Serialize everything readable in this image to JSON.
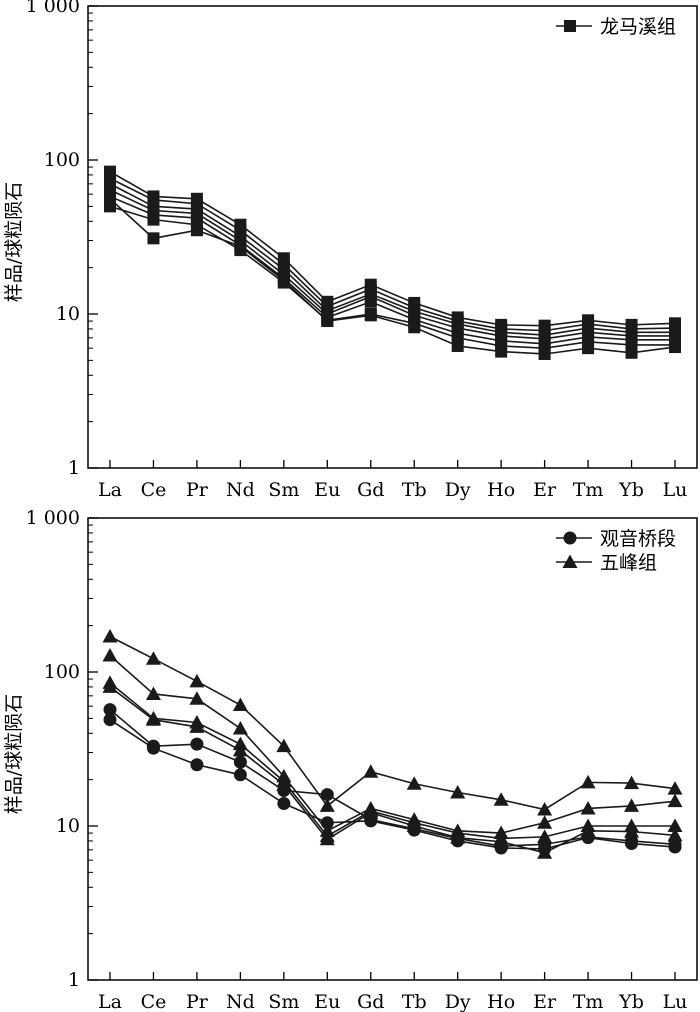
{
  "chart_data": [
    {
      "type": "line",
      "yscale": "log",
      "ylim": [
        1,
        1000
      ],
      "yticks": [
        1,
        10,
        100,
        1000
      ],
      "ytick_labels": [
        "1",
        "10",
        "100",
        "1 000"
      ],
      "ylabel": "样品/球粒陨石",
      "categories": [
        "La",
        "Ce",
        "Pr",
        "Nd",
        "Sm",
        "Eu",
        "Gd",
        "Tb",
        "Dy",
        "Ho",
        "Er",
        "Tm",
        "Yb",
        "Lu"
      ],
      "legend": [
        {
          "label": "龙马溪组",
          "marker": "square"
        }
      ],
      "legend_position": "top-right",
      "grid": false,
      "series": [
        {
          "marker": "square",
          "values": [
            84,
            58,
            56,
            38,
            23,
            12,
            15.5,
            11.8,
            9.5,
            8.5,
            8.4,
            9.1,
            8.5,
            8.7
          ]
        },
        {
          "marker": "square",
          "values": [
            76,
            55,
            52,
            35,
            21,
            11.2,
            14.5,
            11,
            9,
            8,
            7.8,
            8.6,
            8,
            8.1
          ]
        },
        {
          "marker": "square",
          "values": [
            70,
            50,
            48,
            32,
            19.5,
            10.5,
            13.5,
            10.4,
            8.6,
            7.6,
            7.3,
            8.1,
            7.6,
            7.6
          ]
        },
        {
          "marker": "square",
          "values": [
            64,
            47,
            45,
            30,
            18,
            10,
            13,
            9.8,
            8.1,
            7.2,
            6.9,
            7.6,
            7.2,
            7.2
          ]
        },
        {
          "marker": "square",
          "values": [
            58,
            44,
            42,
            28,
            17,
            9.5,
            12,
            9.2,
            7.5,
            6.7,
            6.4,
            7.1,
            6.8,
            6.8
          ]
        },
        {
          "marker": "square",
          "values": [
            50,
            41,
            38,
            26,
            16,
            9.1,
            10,
            8.7,
            7,
            6.2,
            6,
            6.6,
            6.3,
            6.3
          ]
        },
        {
          "marker": "square",
          "values": [
            56,
            31,
            35,
            27.5,
            16.5,
            9,
            9.8,
            8.2,
            6.2,
            5.7,
            5.5,
            6,
            5.6,
            6.1
          ]
        }
      ]
    },
    {
      "type": "line",
      "yscale": "log",
      "ylim": [
        1,
        1000
      ],
      "yticks": [
        1,
        10,
        100,
        1000
      ],
      "ytick_labels": [
        "1",
        "10",
        "100",
        "1 000"
      ],
      "ylabel": "样品/球粒陨石",
      "categories": [
        "La",
        "Ce",
        "Pr",
        "Nd",
        "Sm",
        "Eu",
        "Gd",
        "Tb",
        "Dy",
        "Ho",
        "Er",
        "Tm",
        "Yb",
        "Lu"
      ],
      "legend": [
        {
          "label": "观音桥段",
          "marker": "circle"
        },
        {
          "label": "五峰组",
          "marker": "triangle"
        }
      ],
      "legend_position": "top-right",
      "grid": false,
      "series": [
        {
          "marker": "circle",
          "values": [
            57,
            33,
            34,
            26,
            17,
            16,
            11,
            9.6,
            8.3,
            7.4,
            7.6,
            8.5,
            8,
            7.6
          ]
        },
        {
          "marker": "circle",
          "values": [
            49,
            32,
            25,
            21.5,
            14,
            10.5,
            10.8,
            9.4,
            8,
            7.2,
            7.1,
            8.4,
            7.7,
            7.3
          ]
        },
        {
          "marker": "triangle",
          "values": [
            170,
            122,
            87,
            61,
            33,
            13.5,
            22.5,
            18.8,
            16.5,
            14.8,
            12.8,
            19.2,
            19,
            17.5
          ]
        },
        {
          "marker": "triangle",
          "values": [
            128,
            72,
            67,
            43,
            21,
            9.3,
            13,
            11,
            9.3,
            9,
            10.5,
            13,
            13.5,
            14.5
          ]
        },
        {
          "marker": "triangle",
          "values": [
            85,
            50,
            47,
            34,
            19.5,
            8.6,
            12.5,
            10.5,
            9,
            8.3,
            8.5,
            10,
            10,
            10
          ]
        },
        {
          "marker": "triangle",
          "values": [
            80,
            49,
            44,
            31,
            18.5,
            8.2,
            12.2,
            10,
            8.4,
            7.9,
            6.7,
            9.3,
            9.2,
            8.7
          ]
        }
      ]
    }
  ]
}
